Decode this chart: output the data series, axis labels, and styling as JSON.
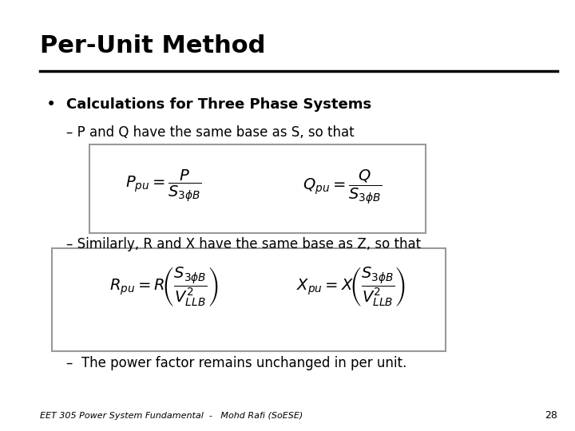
{
  "title": "Per-Unit Method",
  "background_color": "#ffffff",
  "title_fontsize": 22,
  "bullet_text": "Calculations for Three Phase Systems",
  "dash1_text": "P and Q have the same base as S, so that",
  "dash2_text": "Similarly, R and X have the same base as Z, so that",
  "dash3_text": "The power factor remains unchanged in per unit.",
  "footer_text": "EET 305 Power System Fundamental  -   Mohd Rafi (SoESE)",
  "page_number": "28",
  "box1_color": "#999999",
  "box2_color": "#999999"
}
